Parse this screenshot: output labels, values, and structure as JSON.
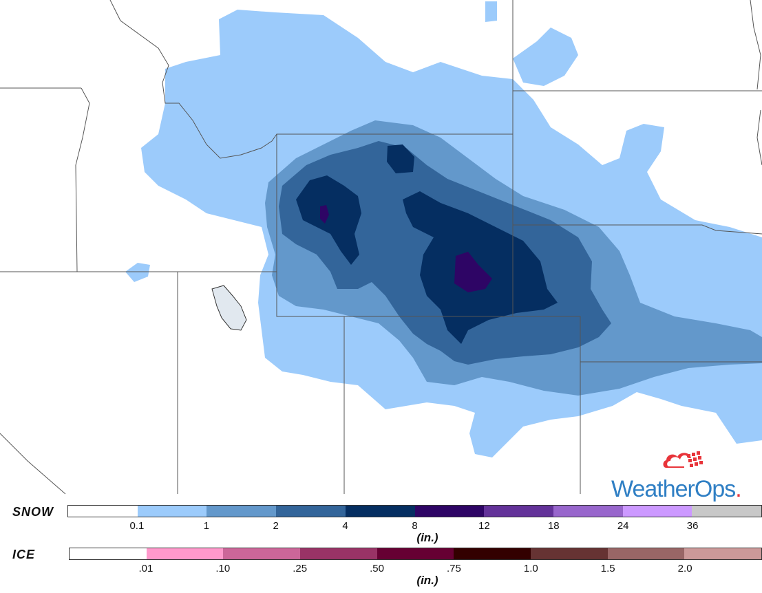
{
  "brand": {
    "name": "WeatherOps",
    "dot": ".",
    "logo_icon": "cloud-grid-icon"
  },
  "legend": {
    "snow": {
      "label": "SNOW",
      "unit": "(in.)",
      "ticks": [
        "0.1",
        "1",
        "2",
        "4",
        "8",
        "12",
        "18",
        "24",
        "36"
      ],
      "colors": [
        "#ffffff",
        "#9ccbfb",
        "#6398cb",
        "#33659a",
        "#052e61",
        "#2e0565",
        "#633299",
        "#9866cc",
        "#cc99ff",
        "#c8c8c8"
      ]
    },
    "ice": {
      "label": "ICE",
      "unit": "(in.)",
      "ticks": [
        ".01",
        ".10",
        ".25",
        ".50",
        ".75",
        "1.0",
        "1.5",
        "2.0"
      ],
      "colors": [
        "#ffffff",
        "#ff99cc",
        "#cc6699",
        "#993366",
        "#660033",
        "#330000",
        "#663333",
        "#996666",
        "#cc9999"
      ]
    }
  },
  "map": {
    "colors": {
      "background": "#ffffff",
      "snow_0_1": "#9ccbfb",
      "snow_1": "#6398cb",
      "snow_2": "#33659a",
      "snow_4": "#052e61",
      "snow_8": "#2e0565",
      "lake": "#e1e8ef",
      "border": "#555555"
    }
  }
}
